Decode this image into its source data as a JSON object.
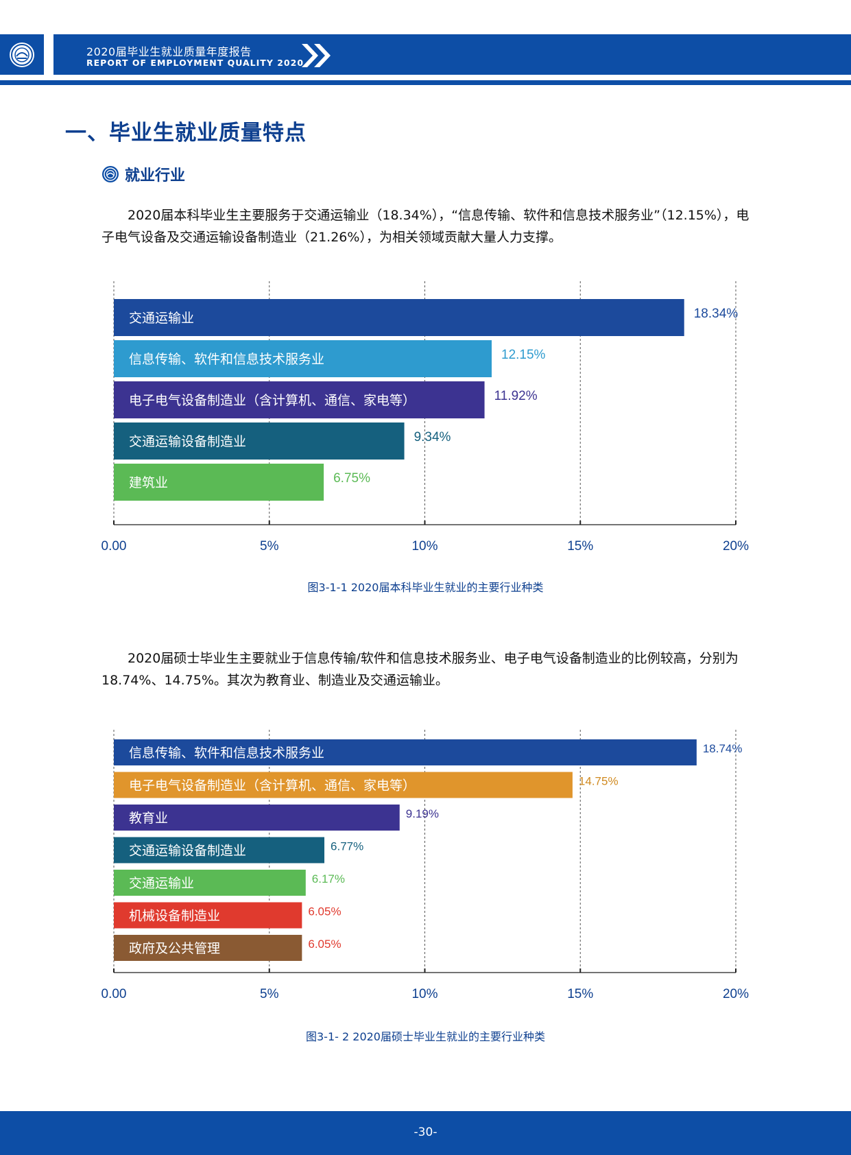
{
  "header": {
    "title_cn": "2020届毕业生就业质量年度报告",
    "title_en": "REPORT OF EMPLOYMENT QUALITY 2020"
  },
  "section": {
    "title": "一、毕业生就业质量特点",
    "subheading": "就业行业"
  },
  "paragraphs": [
    "2020届本科毕业生主要服务于交通运输业（18.34%），“信息传输、软件和信息技术服务业”（12.15%），电子电气设备及交通运输设备制造业（21.26%），为相关领域贡献大量人力支撑。",
    "2020届硕士毕业生主要就业于信息传输/软件和信息技术服务业、电子电气设备制造业的比例较高，分别为18.74%、14.75%。其次为教育业、制造业及交通运输业。"
  ],
  "chart_data": [
    {
      "type": "bar",
      "orientation": "horizontal",
      "caption": "图3-1-1    2020届本科毕业生就业的主要行业种类",
      "categories": [
        "交通运输业",
        "信息传输、软件和信息技术服务业",
        "电子电气设备制造业（含计算机、通信、家电等）",
        "交通运输设备制造业",
        "建筑业"
      ],
      "values": [
        18.34,
        12.15,
        11.92,
        9.34,
        6.75
      ],
      "value_labels": [
        "18.34%",
        "12.15%",
        "11.92%",
        "9.34%",
        "6.75%"
      ],
      "bar_colors": [
        "#1c4a9c",
        "#2e9bcf",
        "#3c3391",
        "#15607e",
        "#5bba55"
      ],
      "label_colors": [
        "#1c4a9c",
        "#2e9bcf",
        "#3c3391",
        "#15607e",
        "#5bba55"
      ],
      "xlim": [
        0,
        20
      ],
      "x_ticks": [
        0,
        5,
        10,
        15,
        20
      ],
      "x_tick_labels": [
        "0.00",
        "5%",
        "10%",
        "15%",
        "20%"
      ],
      "grid": "vertical-dashed"
    },
    {
      "type": "bar",
      "orientation": "horizontal",
      "caption": "图3-1- 2     2020届硕士毕业生就业的主要行业种类",
      "categories": [
        "信息传输、软件和信息技术服务业",
        "电子电气设备制造业（含计算机、通信、家电等）",
        "教育业",
        "交通运输设备制造业",
        "交通运输业",
        "机械设备制造业",
        "政府及公共管理"
      ],
      "values": [
        18.74,
        14.75,
        9.19,
        6.77,
        6.17,
        6.05,
        6.05
      ],
      "value_labels": [
        "18.74%",
        "14.75%",
        "9.19%",
        "6.77%",
        "6.17%",
        "6.05%",
        "6.05%"
      ],
      "bar_colors": [
        "#1c4a9c",
        "#e0952c",
        "#3c3391",
        "#15607e",
        "#5bba55",
        "#e03a2e",
        "#8a5a33"
      ],
      "label_colors": [
        "#1c4a9c",
        "#d08a20",
        "#3c3391",
        "#15607e",
        "#5bba55",
        "#e03a2e",
        "#e03a2e"
      ],
      "xlim": [
        0,
        20
      ],
      "x_ticks": [
        0,
        5,
        10,
        15,
        20
      ],
      "x_tick_labels": [
        "0.00",
        "5%",
        "10%",
        "15%",
        "20%"
      ],
      "grid": "vertical-dashed"
    }
  ],
  "footer": {
    "page_number": "-30-"
  }
}
